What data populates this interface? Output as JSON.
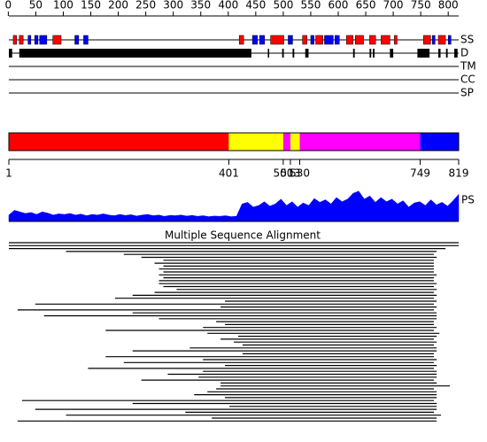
{
  "ruler": {
    "ticks": [
      0,
      50,
      100,
      150,
      200,
      250,
      300,
      350,
      400,
      450,
      500,
      550,
      600,
      650,
      700,
      750,
      800
    ]
  },
  "length": 819,
  "tracks": [
    {
      "label": "SS"
    },
    {
      "label": "D"
    },
    {
      "label": "TM"
    },
    {
      "label": "CC"
    },
    {
      "label": "SP"
    }
  ],
  "ss_colors": {
    "H": "#ff0000",
    "E": "#0000ff"
  },
  "ss_segments": [
    {
      "start": 9,
      "end": 15,
      "type": "H"
    },
    {
      "start": 20,
      "end": 27,
      "type": "H"
    },
    {
      "start": 36,
      "end": 41,
      "type": "E"
    },
    {
      "start": 48,
      "end": 54,
      "type": "E"
    },
    {
      "start": 57,
      "end": 70,
      "type": "E"
    },
    {
      "start": 81,
      "end": 96,
      "type": "H"
    },
    {
      "start": 121,
      "end": 128,
      "type": "E"
    },
    {
      "start": 137,
      "end": 145,
      "type": "E"
    },
    {
      "start": 420,
      "end": 428,
      "type": "H"
    },
    {
      "start": 444,
      "end": 453,
      "type": "E"
    },
    {
      "start": 457,
      "end": 466,
      "type": "E"
    },
    {
      "start": 477,
      "end": 501,
      "type": "H"
    },
    {
      "start": 509,
      "end": 517,
      "type": "E"
    },
    {
      "start": 535,
      "end": 543,
      "type": "H"
    },
    {
      "start": 550,
      "end": 556,
      "type": "E"
    },
    {
      "start": 559,
      "end": 572,
      "type": "H"
    },
    {
      "start": 575,
      "end": 591,
      "type": "E"
    },
    {
      "start": 594,
      "end": 602,
      "type": "E"
    },
    {
      "start": 615,
      "end": 627,
      "type": "H"
    },
    {
      "start": 631,
      "end": 646,
      "type": "H"
    },
    {
      "start": 657,
      "end": 668,
      "type": "H"
    },
    {
      "start": 678,
      "end": 694,
      "type": "H"
    },
    {
      "start": 702,
      "end": 707,
      "type": "H"
    },
    {
      "start": 755,
      "end": 768,
      "type": "H"
    },
    {
      "start": 771,
      "end": 776,
      "type": "E"
    },
    {
      "start": 782,
      "end": 795,
      "type": "H"
    },
    {
      "start": 800,
      "end": 805,
      "type": "E"
    }
  ],
  "disorder": [
    {
      "start": 1,
      "end": 7
    },
    {
      "start": 20,
      "end": 442
    },
    {
      "start": 472,
      "end": 474
    },
    {
      "start": 498,
      "end": 501
    },
    {
      "start": 517,
      "end": 520
    },
    {
      "start": 540,
      "end": 546
    },
    {
      "start": 627,
      "end": 630
    },
    {
      "start": 657,
      "end": 660
    },
    {
      "start": 663,
      "end": 666
    },
    {
      "start": 694,
      "end": 700
    },
    {
      "start": 744,
      "end": 766
    },
    {
      "start": 782,
      "end": 786
    },
    {
      "start": 796,
      "end": 799
    },
    {
      "start": 811,
      "end": 817
    }
  ],
  "domains": [
    {
      "start": 1,
      "end": 401,
      "color": "#ff0000"
    },
    {
      "start": 401,
      "end": 500,
      "color": "#ffff00"
    },
    {
      "start": 500,
      "end": 513,
      "color": "#ff00ff"
    },
    {
      "start": 513,
      "end": 530,
      "color": "#ffff00"
    },
    {
      "start": 530,
      "end": 749,
      "color": "#ff00ff"
    },
    {
      "start": 749,
      "end": 819,
      "color": "#0000ff"
    }
  ],
  "boundaries": [
    1,
    401,
    500,
    513,
    530,
    749,
    819
  ],
  "ps": {
    "label": "PS",
    "color": "#0000ff",
    "values": [
      0.2,
      0.35,
      0.3,
      0.25,
      0.28,
      0.22,
      0.3,
      0.26,
      0.2,
      0.24,
      0.22,
      0.25,
      0.2,
      0.23,
      0.18,
      0.22,
      0.2,
      0.24,
      0.2,
      0.18,
      0.22,
      0.19,
      0.21,
      0.17,
      0.2,
      0.22,
      0.18,
      0.2,
      0.16,
      0.19,
      0.18,
      0.2,
      0.17,
      0.19,
      0.16,
      0.18,
      0.15,
      0.17,
      0.16,
      0.18,
      0.15,
      0.16,
      0.55,
      0.6,
      0.45,
      0.5,
      0.62,
      0.48,
      0.55,
      0.7,
      0.5,
      0.62,
      0.45,
      0.58,
      0.5,
      0.72,
      0.6,
      0.68,
      0.55,
      0.75,
      0.62,
      0.7,
      0.88,
      0.95,
      0.7,
      0.8,
      0.6,
      0.75,
      0.62,
      0.7,
      0.55,
      0.65,
      0.45,
      0.58,
      0.62,
      0.5,
      0.68,
      0.52,
      0.6,
      0.48,
      0.65,
      0.85
    ]
  },
  "msa": {
    "title": "Multiple Sequence Alignment",
    "lines": [
      [
        1,
        819
      ],
      [
        1,
        819
      ],
      [
        1,
        795
      ],
      [
        105,
        779
      ],
      [
        210,
        774
      ],
      [
        242,
        779
      ],
      [
        282,
        774
      ],
      [
        266,
        774
      ],
      [
        282,
        774
      ],
      [
        274,
        774
      ],
      [
        282,
        774
      ],
      [
        274,
        779
      ],
      [
        282,
        774
      ],
      [
        274,
        774
      ],
      [
        274,
        779
      ],
      [
        282,
        774
      ],
      [
        306,
        779
      ],
      [
        266,
        774
      ],
      [
        226,
        779
      ],
      [
        194,
        774
      ],
      [
        394,
        779
      ],
      [
        49,
        774
      ],
      [
        386,
        779
      ],
      [
        17,
        774
      ],
      [
        226,
        779
      ],
      [
        65,
        779
      ],
      [
        274,
        779
      ],
      [
        378,
        774
      ],
      [
        394,
        774
      ],
      [
        354,
        779
      ],
      [
        177,
        774
      ],
      [
        362,
        784
      ],
      [
        418,
        779
      ],
      [
        386,
        774
      ],
      [
        410,
        779
      ],
      [
        426,
        774
      ],
      [
        330,
        779
      ],
      [
        226,
        779
      ],
      [
        426,
        774
      ],
      [
        177,
        774
      ],
      [
        354,
        779
      ],
      [
        210,
        774
      ],
      [
        394,
        779
      ],
      [
        145,
        774
      ],
      [
        354,
        779
      ],
      [
        290,
        779
      ],
      [
        346,
        779
      ],
      [
        242,
        774
      ],
      [
        386,
        779
      ],
      [
        386,
        803
      ],
      [
        378,
        774
      ],
      [
        362,
        779
      ],
      [
        338,
        779
      ],
      [
        394,
        779
      ],
      [
        25,
        774
      ],
      [
        226,
        779
      ],
      [
        402,
        779
      ],
      [
        49,
        779
      ],
      [
        322,
        774
      ],
      [
        105,
        787
      ],
      [
        370,
        779
      ],
      [
        17,
        779
      ]
    ]
  }
}
